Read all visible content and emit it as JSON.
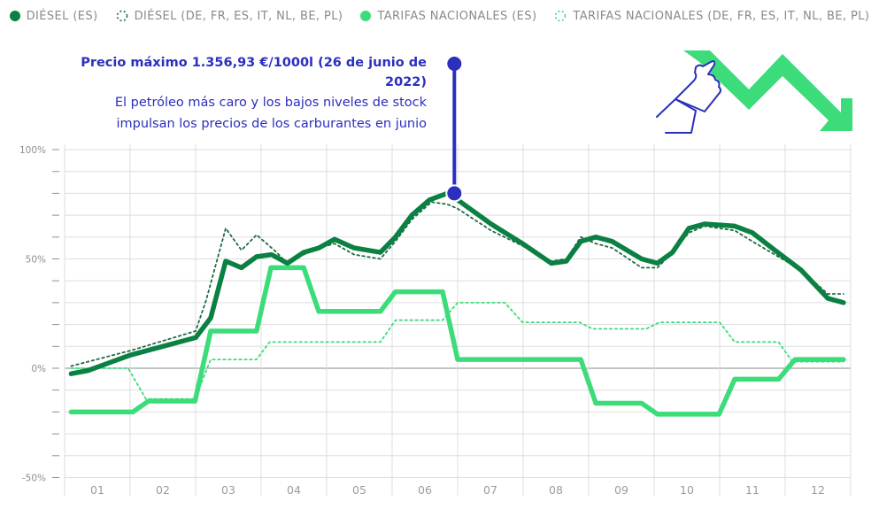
{
  "legend": {
    "items": [
      {
        "label": "DIÉSEL (ES)",
        "style": "solid-dot",
        "color": "#0b8043"
      },
      {
        "label": "DIÉSEL (DE, FR, ES, IT, NL, BE, PL)",
        "style": "dotted-ring",
        "color": "#0b8043"
      },
      {
        "label": "TARIFAS NACIONALES (ES)",
        "style": "solid-dot",
        "color": "#3ddc7a"
      },
      {
        "label": "TARIFAS NACIONALES (DE, FR, ES, IT, NL, BE, PL)",
        "style": "dotted-ring",
        "color": "#3ddc7a"
      }
    ]
  },
  "annotation": {
    "title": "Precio máximo 1.356,93 €/1000l (26 de junio de 2022)",
    "line1": "El petróleo más caro y los bajos niveles de stock",
    "line2": "impulsan los precios de los carburantes en junio",
    "color": "#2b2fbd"
  },
  "illustration": {
    "icon": "hand-pointing-downtrend-arrow-icon",
    "arrow_color": "#3ddc7a",
    "hand_color": "#2b2fbd"
  },
  "colors": {
    "diesel_es": "#0b8043",
    "diesel_eu": "#1f6b45",
    "tarifas_es": "#3ddc7a",
    "tarifas_eu": "#3ddc7a",
    "grid": "#dddddd",
    "zero_line": "#8a8a8a",
    "marker": "#2b2fbd"
  },
  "axes": {
    "y_ticks": [
      {
        "label": "100%",
        "value": 100
      },
      {
        "label": "50%",
        "value": 50
      },
      {
        "label": "0%",
        "value": 0
      },
      {
        "label": "-50%",
        "value": -50
      }
    ],
    "x_ticks": [
      "01",
      "02",
      "03",
      "04",
      "05",
      "06",
      "07",
      "08",
      "09",
      "10",
      "11",
      "12"
    ]
  },
  "chart_data": {
    "type": "line",
    "title": "",
    "xlabel": "",
    "ylabel": "",
    "ylim": [
      -50,
      100
    ],
    "y_ticks": [
      "100%",
      "50%",
      "0%",
      "-50%"
    ],
    "x_categories": [
      "01",
      "02",
      "03",
      "04",
      "05",
      "06",
      "07",
      "08",
      "09",
      "10",
      "11",
      "12"
    ],
    "x_range": [
      0,
      12
    ],
    "grid": true,
    "legend_position": "top",
    "annotations": [
      {
        "x": 5.95,
        "y": 80,
        "title": "Precio máximo 1.356,93 €/1000l (26 de junio de 2022)",
        "text": "El petróleo más caro y los bajos niveles de stock impulsan los precios de los carburantes en junio"
      }
    ],
    "series": [
      {
        "name": "DIÉSEL (ES)",
        "style": "solid-thick",
        "points": [
          [
            0.1,
            -2.5
          ],
          [
            0.36,
            -1
          ],
          [
            1.0,
            6
          ],
          [
            2.0,
            14
          ],
          [
            2.23,
            23
          ],
          [
            2.46,
            49
          ],
          [
            2.7,
            46
          ],
          [
            2.93,
            51
          ],
          [
            3.16,
            52
          ],
          [
            3.4,
            48
          ],
          [
            3.65,
            53
          ],
          [
            3.88,
            55
          ],
          [
            4.12,
            59
          ],
          [
            4.42,
            55
          ],
          [
            4.82,
            53
          ],
          [
            5.05,
            60
          ],
          [
            5.3,
            70
          ],
          [
            5.57,
            77
          ],
          [
            5.84,
            80
          ],
          [
            6.0,
            77
          ],
          [
            6.51,
            66
          ],
          [
            6.99,
            57
          ],
          [
            7.43,
            48
          ],
          [
            7.66,
            49
          ],
          [
            7.88,
            58
          ],
          [
            8.11,
            60
          ],
          [
            8.36,
            58
          ],
          [
            8.81,
            50
          ],
          [
            9.05,
            48
          ],
          [
            9.28,
            53
          ],
          [
            9.53,
            64
          ],
          [
            9.77,
            66
          ],
          [
            10.23,
            65
          ],
          [
            10.5,
            62
          ],
          [
            10.84,
            54
          ],
          [
            11.24,
            45
          ],
          [
            11.65,
            32
          ],
          [
            11.89,
            30
          ]
        ]
      },
      {
        "name": "DIÉSEL (DE, FR, ES, IT, NL, BE, PL)",
        "style": "dotted",
        "points": [
          [
            0.1,
            1
          ],
          [
            1.0,
            8
          ],
          [
            2.0,
            17
          ],
          [
            2.16,
            31
          ],
          [
            2.46,
            64
          ],
          [
            2.7,
            54
          ],
          [
            2.93,
            61
          ],
          [
            3.2,
            54
          ],
          [
            3.4,
            48
          ],
          [
            3.65,
            52
          ],
          [
            3.88,
            55
          ],
          [
            4.12,
            57
          ],
          [
            4.42,
            52
          ],
          [
            4.82,
            50
          ],
          [
            5.05,
            58
          ],
          [
            5.3,
            68
          ],
          [
            5.6,
            76
          ],
          [
            5.84,
            75
          ],
          [
            6.0,
            73
          ],
          [
            6.51,
            63
          ],
          [
            6.99,
            56
          ],
          [
            7.43,
            49
          ],
          [
            7.66,
            50
          ],
          [
            7.88,
            60
          ],
          [
            8.11,
            57
          ],
          [
            8.36,
            55
          ],
          [
            8.81,
            46
          ],
          [
            9.05,
            46
          ],
          [
            9.28,
            53
          ],
          [
            9.53,
            62
          ],
          [
            9.77,
            65
          ],
          [
            10.23,
            63
          ],
          [
            10.5,
            58
          ],
          [
            10.84,
            52
          ],
          [
            11.24,
            45
          ],
          [
            11.65,
            34
          ],
          [
            11.89,
            34
          ]
        ]
      },
      {
        "name": "TARIFAS NACIONALES (ES)",
        "style": "solid-thick",
        "points": [
          [
            0.1,
            -20
          ],
          [
            1.04,
            -20
          ],
          [
            1.28,
            -15
          ],
          [
            1.99,
            -15
          ],
          [
            2.23,
            17
          ],
          [
            2.93,
            17
          ],
          [
            3.15,
            46
          ],
          [
            3.65,
            46
          ],
          [
            3.88,
            26
          ],
          [
            4.82,
            26
          ],
          [
            5.05,
            35
          ],
          [
            5.77,
            35
          ],
          [
            6.0,
            4
          ],
          [
            7.88,
            4
          ],
          [
            8.11,
            -16
          ],
          [
            8.81,
            -16
          ],
          [
            9.05,
            -21
          ],
          [
            9.99,
            -21
          ],
          [
            10.23,
            -5
          ],
          [
            10.9,
            -5
          ],
          [
            11.15,
            4
          ],
          [
            11.89,
            4
          ]
        ]
      },
      {
        "name": "TARIFAS NACIONALES (DE, FR, ES, IT, NL, BE, PL)",
        "style": "dotted",
        "points": [
          [
            0.1,
            0
          ],
          [
            0.97,
            0
          ],
          [
            1.24,
            -14
          ],
          [
            1.99,
            -14
          ],
          [
            2.23,
            4
          ],
          [
            2.93,
            4
          ],
          [
            3.13,
            12
          ],
          [
            4.82,
            12
          ],
          [
            5.05,
            22
          ],
          [
            5.77,
            22
          ],
          [
            6.0,
            30
          ],
          [
            6.72,
            30
          ],
          [
            6.99,
            21
          ],
          [
            7.86,
            21
          ],
          [
            8.06,
            18
          ],
          [
            8.88,
            18
          ],
          [
            9.08,
            21
          ],
          [
            10.0,
            21
          ],
          [
            10.23,
            12
          ],
          [
            10.9,
            12
          ],
          [
            11.11,
            3
          ],
          [
            11.89,
            3
          ]
        ]
      }
    ]
  }
}
